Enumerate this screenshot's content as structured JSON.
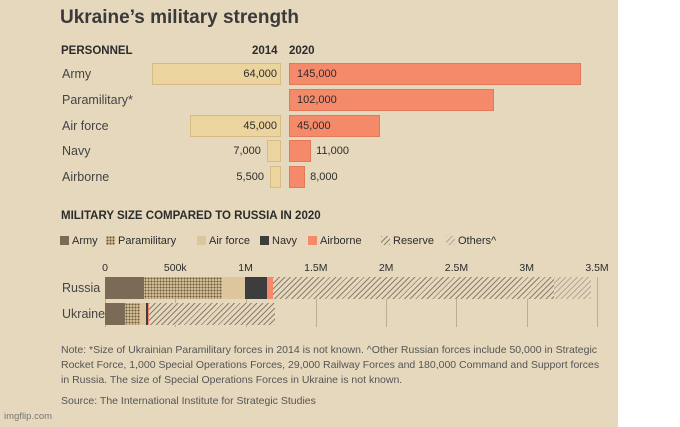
{
  "title": "Ukraine’s military strength",
  "chart_data": [
    {
      "type": "bar",
      "section_label": "PERSONNEL",
      "categories": [
        "Army",
        "Paramilitary*",
        "Air force",
        "Navy",
        "Airborne"
      ],
      "series": [
        {
          "name": "2014",
          "values": [
            64000,
            null,
            45000,
            7000,
            5500
          ],
          "labels": [
            "64,000",
            "",
            "45,000",
            "7,000",
            "5,500"
          ],
          "color": "#ecd49e"
        },
        {
          "name": "2020",
          "values": [
            145000,
            102000,
            45000,
            11000,
            8000
          ],
          "labels": [
            "145,000",
            "102,000",
            "45,000",
            "11,000",
            "8,000"
          ],
          "color": "#f48a6a"
        }
      ]
    },
    {
      "type": "bar",
      "stacked": true,
      "orientation": "horizontal",
      "section_label": "MILITARY SIZE COMPARED TO RUSSIA IN 2020",
      "categories": [
        "Russia",
        "Ukraine"
      ],
      "xlim": [
        0,
        3500000
      ],
      "tick_values": [
        0,
        500000,
        1000000,
        1500000,
        2000000,
        2500000,
        3000000,
        3500000
      ],
      "tick_labels": [
        "0",
        "500k",
        "1M",
        "1.5M",
        "2M",
        "2.5M",
        "3M",
        "3.5M"
      ],
      "legend": [
        {
          "label": "Army",
          "color": "#7a6a56",
          "pattern": "solid"
        },
        {
          "label": "Paramilitary",
          "color": "#b09a72",
          "pattern": "dots"
        },
        {
          "label": "Air force",
          "color": "#ddc69e",
          "pattern": "solid"
        },
        {
          "label": "Navy",
          "color": "#3d3d3d",
          "pattern": "solid"
        },
        {
          "label": "Airborne",
          "color": "#f48a6a",
          "pattern": "solid"
        },
        {
          "label": "Reserve",
          "color": "#8a8070",
          "pattern": "hatch"
        },
        {
          "label": "Others^",
          "color": "#b0a898",
          "pattern": "hatch"
        }
      ],
      "series": [
        {
          "name": "Army",
          "values": [
            280000,
            145000
          ]
        },
        {
          "name": "Paramilitary",
          "values": [
            554000,
            102000
          ]
        },
        {
          "name": "Air force",
          "values": [
            165000,
            45000
          ]
        },
        {
          "name": "Navy",
          "values": [
            150000,
            11000
          ]
        },
        {
          "name": "Airborne",
          "values": [
            45000,
            8000
          ]
        },
        {
          "name": "Reserve",
          "values": [
            2000000,
            900000
          ]
        },
        {
          "name": "Others^",
          "values": [
            260000,
            0
          ]
        }
      ]
    }
  ],
  "note": "Note: *Size of Ukrainian Paramilitary forces in 2014 is not known. ^Other Russian forces include 50,000 in Strategic Rocket Force, 1,000 Special Operations Forces, 29,000 Railway Forces and 180,000 Command and Support forces in Russia. The size of Special Operations Forces in Ukraine is not known.",
  "source": "Source: The International Institute for Strategic Studies",
  "watermark": "imgflip.com"
}
